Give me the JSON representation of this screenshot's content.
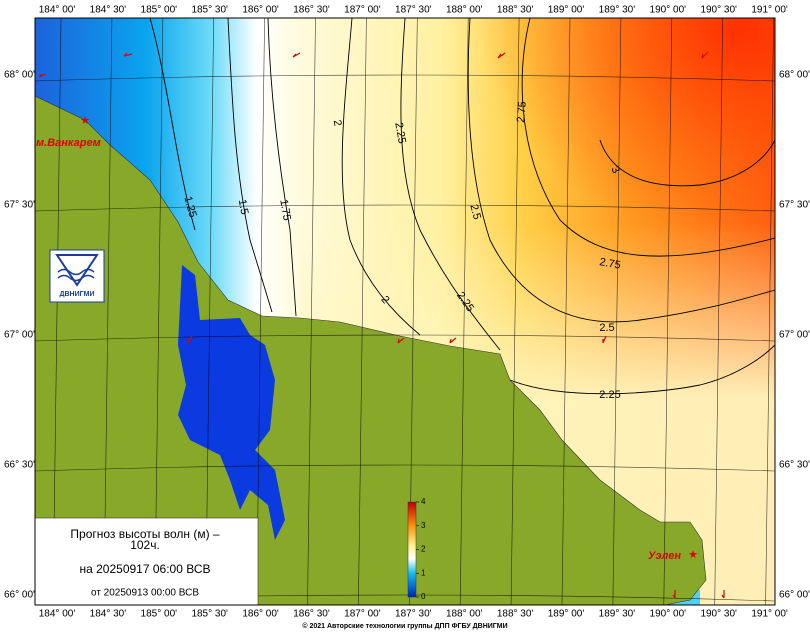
{
  "lon_labels": [
    "184° 00'",
    "184° 30'",
    "185° 00'",
    "185° 30'",
    "186° 00'",
    "186° 30'",
    "187° 00'",
    "187° 30'",
    "188° 00'",
    "188° 30'",
    "189° 00'",
    "189° 30'",
    "190° 00'",
    "190° 30'",
    "191° 00'"
  ],
  "lat_labels": [
    "68° 00'",
    "67° 30'",
    "67° 00'",
    "66° 30'",
    "66° 00'"
  ],
  "contour_labels": [
    "2",
    "2.25",
    "2.75",
    "1.25",
    "1.5",
    "1.75",
    "2.5",
    "3",
    "2.75",
    "2",
    "2.25",
    "2.5",
    "2.25"
  ],
  "places": [
    "м.Ванкарем",
    "Уэлен"
  ],
  "logo": "ДВНИГМИ",
  "legend": {
    "title": "Прогноз высоты волн (м) –",
    "lead": "102ч.",
    "valid": "на 20250917 06:00 ВСВ",
    "issued": "от 20250913 00:00 ВСВ"
  },
  "colorbar": {
    "lim": [
      0,
      4
    ],
    "ticks": [
      0,
      1,
      2,
      3,
      4
    ]
  },
  "footer": "© 2021 Авторские технологии группы ДПП ФГБУ ДВНИГМИ"
}
